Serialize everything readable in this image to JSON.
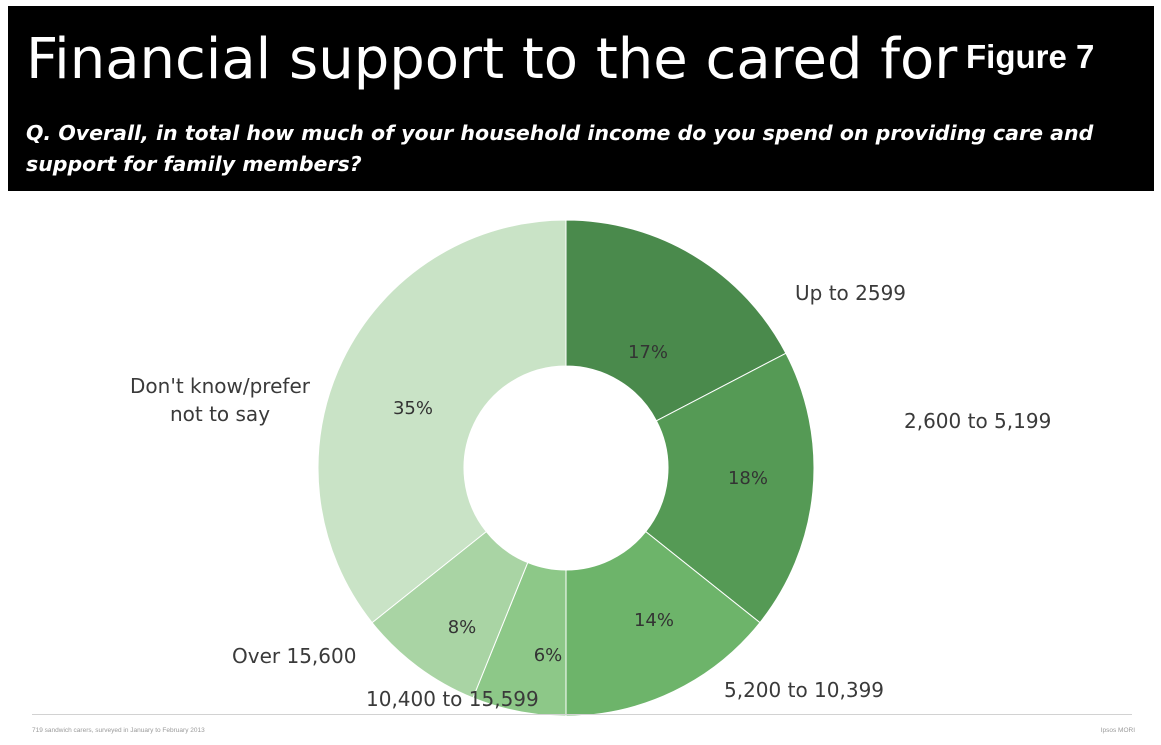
{
  "header": {
    "title": "Financial support to the cared for",
    "figure_label": "Figure 7",
    "question": "Q. Overall, in total how much of your household income do you spend on providing care and support for family members?"
  },
  "footer": {
    "source_note": "719 sandwich carers, surveyed in January to February 2013",
    "brand": "Ipsos MORI"
  },
  "chart_data": {
    "type": "pie",
    "donut": true,
    "legend": "none",
    "start_angle": "12 o'clock, clockwise",
    "slices": [
      {
        "label": "Up to 2599",
        "value": 17,
        "value_label": "17%",
        "color": "#4a8a4c"
      },
      {
        "label": "2,600 to 5,199",
        "value": 18,
        "value_label": "18%",
        "color": "#559a55"
      },
      {
        "label": "5,200 to 10,399",
        "value": 14,
        "value_label": "14%",
        "color": "#6db46a"
      },
      {
        "label": "10,400 to 15,599",
        "value": 6,
        "value_label": "6%",
        "color": "#8dc888"
      },
      {
        "label": "Over 15,600",
        "value": 8,
        "value_label": "8%",
        "color": "#a9d4a4"
      },
      {
        "label": "Don't know/prefer not to say",
        "value": 35,
        "value_label": "35%",
        "color": "#c9e3c6"
      }
    ]
  }
}
